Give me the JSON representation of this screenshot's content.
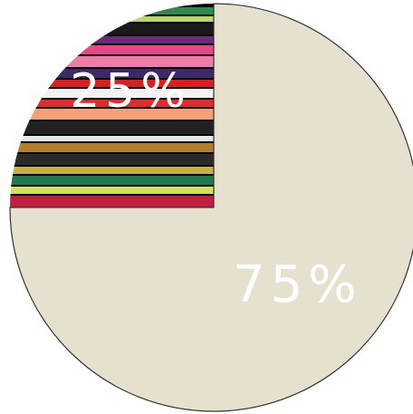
{
  "chart_data": {
    "type": "pie",
    "values": [
      25,
      75
    ],
    "value_labels": [
      "25%",
      "75%"
    ],
    "colors": [
      "#7a2a5e",
      "#e6e1cf"
    ]
  }
}
